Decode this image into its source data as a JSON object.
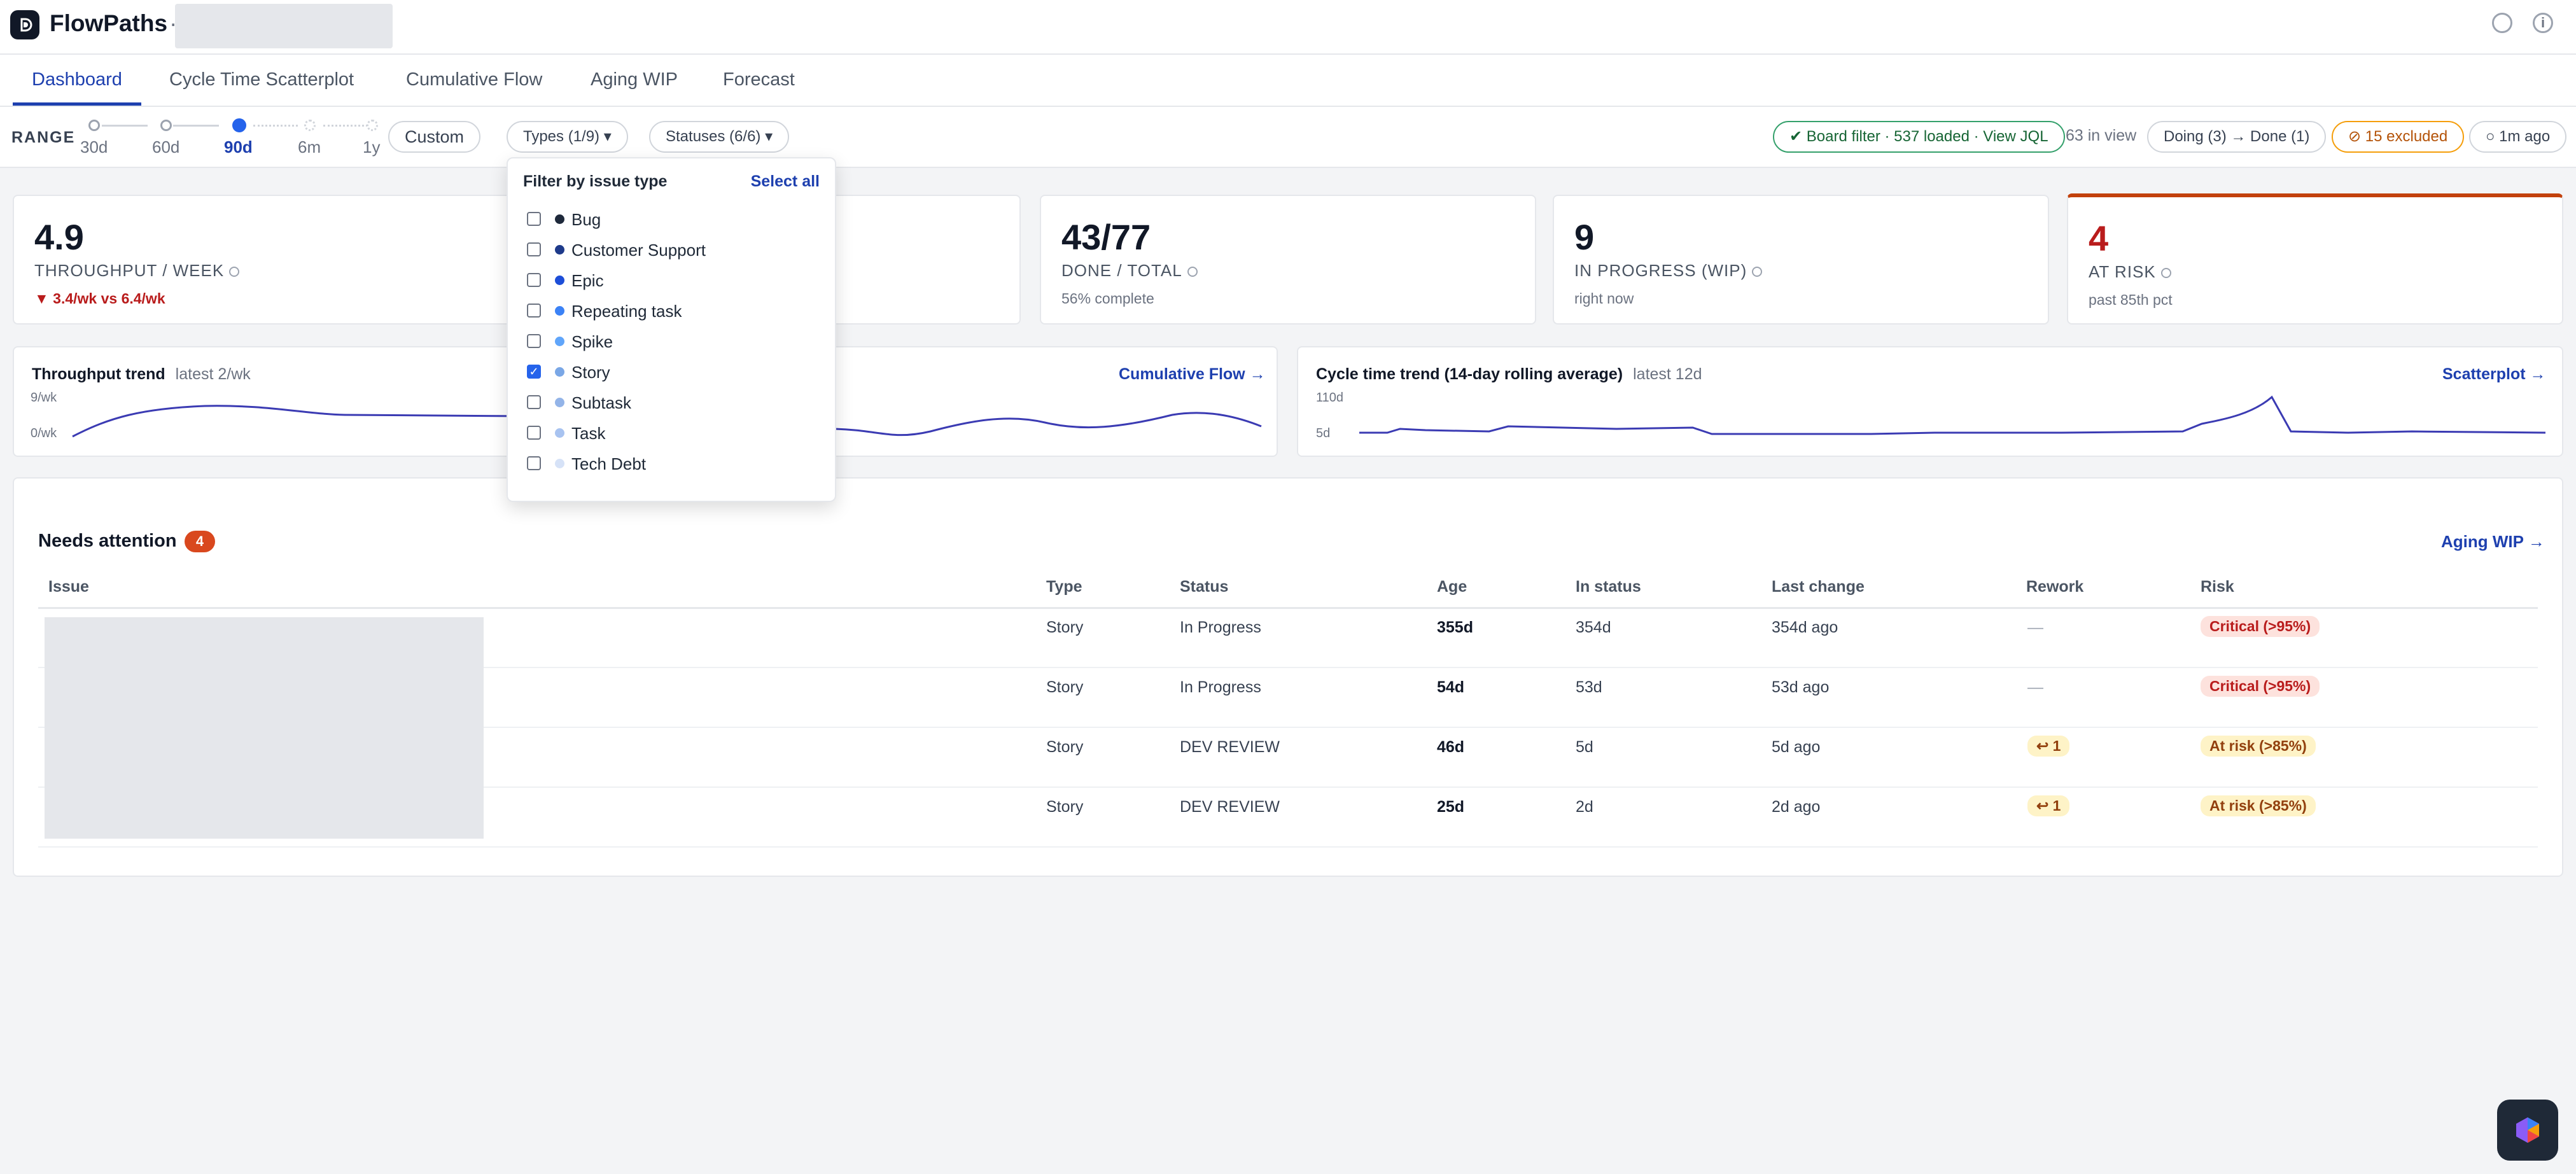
{
  "app": {
    "title": "FlowPaths",
    "separator": "·"
  },
  "tabs": [
    {
      "label": "Dashboard"
    },
    {
      "label": "Cycle Time Scatterplot"
    },
    {
      "label": "Cumulative Flow"
    },
    {
      "label": "Aging WIP"
    },
    {
      "label": "Forecast"
    }
  ],
  "range": {
    "label": "RANGE",
    "options": [
      "30d",
      "60d",
      "90d",
      "6m",
      "1y"
    ],
    "selected": "90d",
    "custom_label": "Custom"
  },
  "filters": {
    "types_label": "Types (1/9) ▾",
    "statuses_label": "Statuses (6/6) ▾"
  },
  "status_bar": {
    "board_filter": "✔ Board filter · 537 loaded · View JQL",
    "in_view": "63 in view",
    "flow": "Doing (3) → Done (1)",
    "excluded": "⊘ 15 excluded",
    "refreshed": "○ 1m ago"
  },
  "stats": {
    "throughput": {
      "value": "4.9",
      "label": "THROUGHPUT / WEEK",
      "sub": "▼ 3.4/wk vs 6.4/wk"
    },
    "done_total": {
      "value": "43/77",
      "label": "DONE / TOTAL",
      "sub": "56% complete"
    },
    "wip": {
      "value": "9",
      "label": "IN PROGRESS (WIP)",
      "sub": "right now"
    },
    "at_risk": {
      "value": "4",
      "label": "AT RISK",
      "sub": "past 85th pct"
    }
  },
  "trends": {
    "throughput": {
      "title": "Throughput trend",
      "latest": "latest 2/wk",
      "y_max": "9/wk",
      "y_min": "0/wk"
    },
    "cumulative_link": "Cumulative Flow →",
    "cycle_time": {
      "title": "Cycle time trend (14-day rolling average)",
      "latest": "latest 12d",
      "y_max": "110d",
      "y_min": "5d",
      "link": "Scatterplot →"
    }
  },
  "attention": {
    "title": "Needs attention",
    "count": "4",
    "link": "Aging WIP →",
    "columns": [
      "Issue",
      "Type",
      "Status",
      "Age",
      "In status",
      "Last change",
      "Rework",
      "Risk"
    ],
    "rows": [
      {
        "type": "Story",
        "status": "In Progress",
        "age": "355d",
        "in_status": "354d",
        "last_change": "354d ago",
        "rework": "—",
        "risk": "Critical (>95%)"
      },
      {
        "type": "Story",
        "status": "In Progress",
        "age": "54d",
        "in_status": "53d",
        "last_change": "53d ago",
        "rework": "—",
        "risk": "Critical (>95%)"
      },
      {
        "type": "Story",
        "status": "DEV REVIEW",
        "age": "46d",
        "in_status": "5d",
        "last_change": "5d ago",
        "rework": "↩ 1",
        "risk": "At risk (>85%)"
      },
      {
        "type": "Story",
        "status": "DEV REVIEW",
        "age": "25d",
        "in_status": "2d",
        "last_change": "2d ago",
        "rework": "↩ 1",
        "risk": "At risk (>85%)"
      }
    ]
  },
  "type_filter": {
    "title": "Filter by issue type",
    "select_all": "Select all",
    "items": [
      {
        "label": "Bug",
        "checked": false,
        "color": "#1e293b"
      },
      {
        "label": "Customer Support",
        "checked": false,
        "color": "#1e3a8a"
      },
      {
        "label": "Epic",
        "checked": false,
        "color": "#1d4ed8"
      },
      {
        "label": "Repeating task",
        "checked": false,
        "color": "#3b82f6"
      },
      {
        "label": "Spike",
        "checked": false,
        "color": "#60a5fa"
      },
      {
        "label": "Story",
        "checked": true,
        "color": "#7aa7e6"
      },
      {
        "label": "Subtask",
        "checked": false,
        "color": "#93b4e8"
      },
      {
        "label": "Task",
        "checked": false,
        "color": "#a8c3f0"
      },
      {
        "label": "Tech Debt",
        "checked": false,
        "color": "#d6e2f7"
      }
    ]
  },
  "colors": {
    "accent": "#1e40af",
    "danger": "#b91c1c",
    "warning": "#d97706",
    "success": "#166534"
  }
}
